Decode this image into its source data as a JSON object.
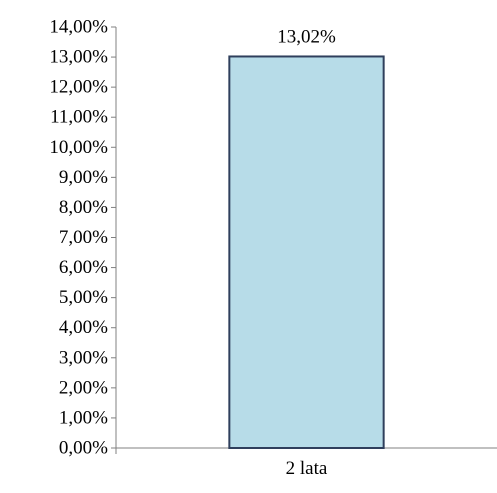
{
  "chart_data": {
    "type": "bar",
    "categories": [
      "2 lata"
    ],
    "values": [
      13.02
    ],
    "data_labels": [
      "13,02%"
    ],
    "ylim": [
      0,
      14
    ],
    "y_ticks": [
      "0,00%",
      "1,00%",
      "2,00%",
      "3,00%",
      "4,00%",
      "5,00%",
      "6,00%",
      "7,00%",
      "8,00%",
      "9,00%",
      "10,00%",
      "11,00%",
      "12,00%",
      "13,00%",
      "14,00%"
    ],
    "title": "",
    "xlabel": "",
    "ylabel": "",
    "grid": false,
    "legend": "none",
    "colors": {
      "bar_fill": "#b7dce8",
      "bar_stroke": "#2f3f5c",
      "axis": "#808080",
      "text": "#000000"
    }
  }
}
